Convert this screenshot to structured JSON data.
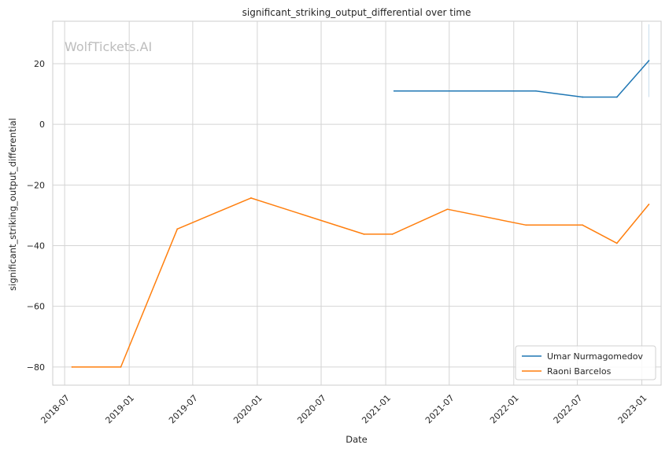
{
  "chart_data": {
    "type": "line",
    "title": "significant_striking_output_differential over time",
    "xlabel": "Date",
    "ylabel": "significant_striking_output_differential",
    "watermark": "WolfTickets.AI",
    "x_ticks": [
      "2018-07",
      "2019-01",
      "2019-07",
      "2020-01",
      "2020-07",
      "2021-01",
      "2021-07",
      "2022-01",
      "2022-07",
      "2023-01"
    ],
    "y_ticks": [
      20,
      0,
      -20,
      -40,
      -60,
      -80
    ],
    "y_tick_labels": [
      "20",
      "0",
      "−20",
      "−40",
      "−60",
      "−80"
    ],
    "xlim": [
      "2018-05-28",
      "2023-02-25"
    ],
    "ylim": [
      -86,
      34
    ],
    "grid": true,
    "legend_position": "lower-right",
    "series": [
      {
        "name": "Umar Nurmagomedov",
        "color": "#1f77b4",
        "points": [
          {
            "x": "2021-01-25",
            "y": 11
          },
          {
            "x": "2022-03-05",
            "y": 11
          },
          {
            "x": "2022-07-16",
            "y": 9
          },
          {
            "x": "2022-10-22",
            "y": 9
          },
          {
            "x": "2023-01-21",
            "y": 21
          }
        ],
        "errorbar": {
          "x": "2023-01-21",
          "low": 9,
          "high": 33
        }
      },
      {
        "name": "Raoni Barcelos",
        "color": "#ff7f0e",
        "points": [
          {
            "x": "2018-07-22",
            "y": -80
          },
          {
            "x": "2018-12-08",
            "y": -80
          },
          {
            "x": "2019-05-18",
            "y": -34.5
          },
          {
            "x": "2019-12-14",
            "y": -24.3
          },
          {
            "x": "2020-10-31",
            "y": -36.2
          },
          {
            "x": "2021-01-20",
            "y": -36.2
          },
          {
            "x": "2021-06-26",
            "y": -28
          },
          {
            "x": "2022-02-05",
            "y": -33.2
          },
          {
            "x": "2022-07-16",
            "y": -33.2
          },
          {
            "x": "2022-10-22",
            "y": -39.2
          },
          {
            "x": "2023-01-21",
            "y": -26.4
          }
        ]
      }
    ]
  }
}
